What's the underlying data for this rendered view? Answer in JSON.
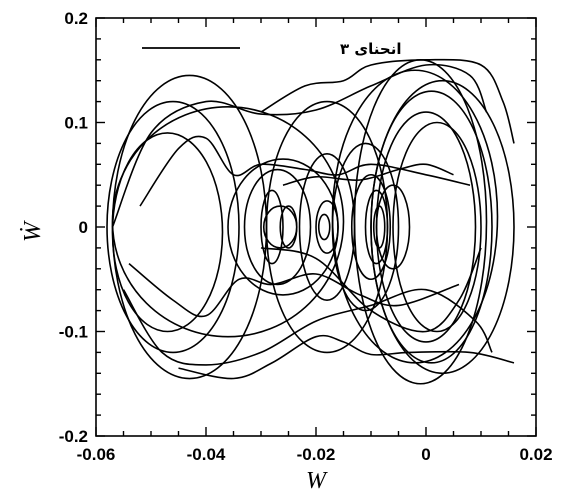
{
  "chart_data": {
    "type": "line",
    "title": "",
    "xlabel": "W",
    "ylabel": "Ẇ",
    "xlim": [
      -0.06,
      0.02
    ],
    "ylim": [
      -0.2,
      0.2
    ],
    "xticks": [
      -0.06,
      -0.04,
      -0.02,
      0,
      0.02
    ],
    "xtick_labels": [
      "-0.06",
      "-0.04",
      "-0.02",
      "0",
      "0.02"
    ],
    "yticks": [
      -0.2,
      -0.1,
      0,
      0.1,
      0.2
    ],
    "ytick_labels": [
      "-0.2",
      "-0.1",
      "0",
      "0.1",
      "0.2"
    ],
    "grid": false,
    "legend": {
      "placement": "top-left",
      "entries": [
        "انحنای ۳"
      ]
    },
    "series": [
      {
        "name": "انحنای ۳",
        "color": "#000000",
        "loops": [
          {
            "cx": -0.046,
            "cy": 0.0,
            "rx": 0.012,
            "ry": 0.12
          },
          {
            "cx": -0.043,
            "cy": 0.0,
            "rx": 0.014,
            "ry": 0.145
          },
          {
            "cx": -0.047,
            "cy": -0.005,
            "rx": 0.01,
            "ry": 0.095
          },
          {
            "cx": -0.036,
            "cy": 0.005,
            "rx": 0.021,
            "ry": 0.11
          },
          {
            "cx": -0.026,
            "cy": 0.0,
            "rx": 0.01,
            "ry": 0.065
          },
          {
            "cx": -0.027,
            "cy": 0.0,
            "rx": 0.006,
            "ry": 0.055
          },
          {
            "cx": -0.0265,
            "cy": 0.0,
            "rx": 0.003,
            "ry": 0.02
          },
          {
            "cx": -0.028,
            "cy": 0.0,
            "rx": 0.002,
            "ry": 0.035
          },
          {
            "cx": -0.025,
            "cy": 0.0,
            "rx": 0.0015,
            "ry": 0.02
          },
          {
            "cx": -0.018,
            "cy": 0.0,
            "rx": 0.011,
            "ry": 0.12
          },
          {
            "cx": -0.018,
            "cy": 0.0,
            "rx": 0.005,
            "ry": 0.07
          },
          {
            "cx": -0.018,
            "cy": 0.0,
            "rx": 0.002,
            "ry": 0.025
          },
          {
            "cx": -0.0185,
            "cy": 0.0,
            "rx": 0.001,
            "ry": 0.012
          },
          {
            "cx": -0.011,
            "cy": 0.0,
            "rx": 0.006,
            "ry": 0.08
          },
          {
            "cx": -0.009,
            "cy": 0.0,
            "rx": 0.002,
            "ry": 0.035
          },
          {
            "cx": -0.0085,
            "cy": 0.0,
            "rx": 0.001,
            "ry": 0.02
          },
          {
            "cx": -0.01,
            "cy": 0.0,
            "rx": 0.0035,
            "ry": 0.05
          },
          {
            "cx": -0.006,
            "cy": 0.0,
            "rx": 0.003,
            "ry": 0.04
          },
          {
            "cx": 0.001,
            "cy": 0.0,
            "rx": 0.011,
            "ry": 0.13
          },
          {
            "cx": 0.0,
            "cy": 0.0,
            "rx": 0.009,
            "ry": 0.11
          },
          {
            "cx": 0.002,
            "cy": 0.0,
            "rx": 0.008,
            "ry": 0.1
          },
          {
            "cx": -0.001,
            "cy": 0.005,
            "rx": 0.012,
            "ry": 0.155
          },
          {
            "cx": 0.003,
            "cy": 0.0,
            "rx": 0.013,
            "ry": 0.14
          },
          {
            "cx": -0.002,
            "cy": 0.01,
            "rx": 0.015,
            "ry": 0.14
          }
        ],
        "bridges": [
          {
            "x": [
              -0.057,
              -0.05,
              -0.04,
              -0.03,
              -0.02,
              -0.01,
              0.0,
              0.008,
              0.011
            ],
            "y": [
              0.0,
              0.09,
              0.12,
              0.108,
              0.112,
              0.135,
              0.155,
              0.145,
              0.11
            ]
          },
          {
            "x": [
              -0.055,
              -0.048,
              -0.04,
              -0.03,
              -0.02,
              -0.01,
              0.0,
              0.009,
              0.012
            ],
            "y": [
              -0.06,
              -0.12,
              -0.132,
              -0.12,
              -0.09,
              -0.075,
              -0.06,
              -0.09,
              -0.12
            ]
          },
          {
            "x": [
              -0.052,
              -0.045,
              -0.04,
              -0.035,
              -0.03,
              -0.022,
              -0.016,
              -0.01,
              0.0,
              0.008
            ],
            "y": [
              0.02,
              0.075,
              0.085,
              0.05,
              0.06,
              0.055,
              0.05,
              0.06,
              0.05,
              0.04
            ]
          },
          {
            "x": [
              -0.054,
              -0.046,
              -0.04,
              -0.034,
              -0.028,
              -0.02,
              -0.012,
              -0.005,
              0.006
            ],
            "y": [
              -0.035,
              -0.07,
              -0.085,
              -0.05,
              -0.055,
              -0.045,
              -0.065,
              -0.075,
              -0.055
            ]
          },
          {
            "x": [
              -0.045,
              -0.035,
              -0.028,
              -0.02,
              -0.015,
              -0.01,
              -0.003,
              0.008,
              0.016
            ],
            "y": [
              -0.135,
              -0.145,
              -0.13,
              -0.105,
              -0.11,
              -0.122,
              -0.12,
              -0.12,
              -0.13
            ]
          },
          {
            "x": [
              -0.03,
              -0.022,
              -0.015,
              -0.01,
              0.0,
              0.01,
              0.014,
              0.016
            ],
            "y": [
              0.11,
              0.135,
              0.14,
              0.155,
              0.16,
              0.155,
              0.12,
              0.08
            ]
          },
          {
            "x": [
              -0.026,
              -0.02,
              -0.012,
              -0.005,
              0.0,
              0.005
            ],
            "y": [
              0.04,
              0.048,
              0.045,
              0.055,
              0.06,
              0.05
            ]
          },
          {
            "x": [
              -0.03,
              -0.02,
              -0.01,
              0.0,
              0.006,
              0.01
            ],
            "y": [
              -0.02,
              -0.03,
              -0.08,
              -0.1,
              -0.07,
              -0.02
            ]
          }
        ]
      }
    ]
  }
}
